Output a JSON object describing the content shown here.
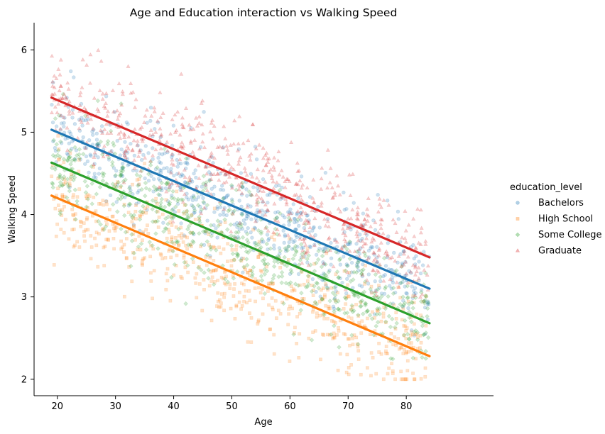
{
  "chart_data": {
    "type": "scatter",
    "title": "Age and Education interaction vs Walking Speed",
    "xlabel": "Age",
    "ylabel": "Walking Speed",
    "xlim": [
      16,
      95
    ],
    "ylim": [
      1.8,
      6.33
    ],
    "xticks": [
      20,
      30,
      40,
      50,
      60,
      70,
      80
    ],
    "yticks": [
      2,
      3,
      4,
      5,
      6
    ],
    "x_range": [
      19,
      84
    ],
    "y_floor": 2.0,
    "legend": {
      "title": "education_level",
      "placement": "right"
    },
    "grid": false,
    "series": [
      {
        "name": "Bachelors",
        "color": "#1f77b4",
        "marker": "circle",
        "intercept": 5.03,
        "slope": -0.03,
        "spread": 0.3,
        "fit_line": {
          "x": [
            19,
            84
          ],
          "y": [
            5.03,
            3.1
          ]
        }
      },
      {
        "name": "High School",
        "color": "#ff7f0e",
        "marker": "square",
        "intercept": 4.23,
        "slope": -0.03,
        "spread": 0.32,
        "fit_line": {
          "x": [
            19,
            84
          ],
          "y": [
            4.23,
            2.28
          ]
        }
      },
      {
        "name": "Some College",
        "color": "#2ca02c",
        "marker": "diamond",
        "intercept": 4.63,
        "slope": -0.03,
        "spread": 0.3,
        "fit_line": {
          "x": [
            19,
            84
          ],
          "y": [
            4.63,
            2.68
          ]
        }
      },
      {
        "name": "Graduate",
        "color": "#d62728",
        "marker": "triangle",
        "intercept": 5.42,
        "slope": -0.03,
        "spread": 0.3,
        "fit_line": {
          "x": [
            19,
            84
          ],
          "y": [
            5.42,
            3.48
          ]
        }
      }
    ]
  }
}
